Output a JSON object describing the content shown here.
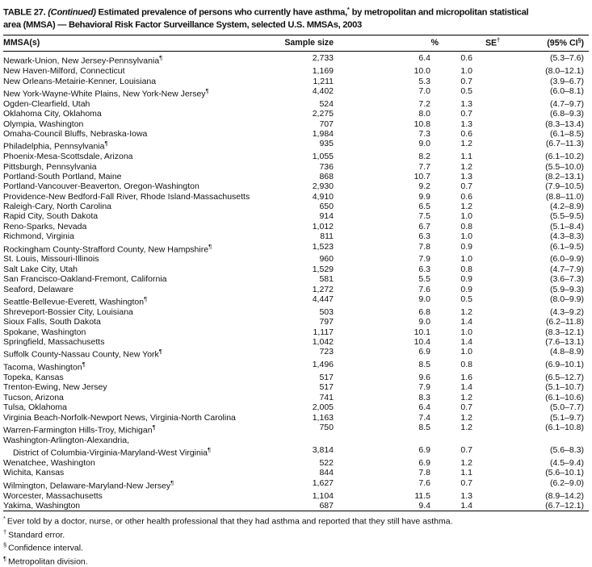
{
  "title": {
    "part1": "TABLE 27. ",
    "continued": "(Continued)",
    "part2": " Estimated prevalence of persons who currently have asthma,",
    "star": "*",
    "part3": " by metropolitan and micropolitan statistical",
    "line2": "area (MMSA) — Behavioral Risk Factor Surveillance System, selected U.S. MMSAs, 2003"
  },
  "table": {
    "headers": [
      {
        "base": "MMSA(s)"
      },
      {
        "base": "Sample size"
      },
      {
        "base": "%"
      },
      {
        "base": "SE",
        "sup": "†"
      },
      {
        "base": "(95% CI",
        "sup": "§",
        "post": ")"
      }
    ],
    "rows": [
      {
        "name": "Newark-Union, New Jersey-Pennsylvania",
        "sup": "¶",
        "size": "2,733",
        "pct": "6.4",
        "se": "0.6",
        "ci": "(5.3–7.6)"
      },
      {
        "name": "New Haven-Milford, Connecticut",
        "size": "1,169",
        "pct": "10.0",
        "se": "1.0",
        "ci": "(8.0–12.1)"
      },
      {
        "name": "New Orleans-Metairie-Kenner, Louisiana",
        "size": "1,211",
        "pct": "5.3",
        "se": "0.7",
        "ci": "(3.9–6.7)"
      },
      {
        "name": "New York-Wayne-White Plains, New York-New Jersey",
        "sup": "¶",
        "size": "4,402",
        "pct": "7.0",
        "se": "0.5",
        "ci": "(6.0–8.1)"
      },
      {
        "name": "Ogden-Clearfield, Utah",
        "size": "524",
        "pct": "7.2",
        "se": "1.3",
        "ci": "(4.7–9.7)"
      },
      {
        "name": "Oklahoma City, Oklahoma",
        "size": "2,275",
        "pct": "8.0",
        "se": "0.7",
        "ci": "(6.8–9.3)"
      },
      {
        "name": "Olympia, Washington",
        "size": "707",
        "pct": "10.8",
        "se": "1.3",
        "ci": "(8.3–13.4)"
      },
      {
        "name": "Omaha-Council Bluffs, Nebraska-Iowa",
        "size": "1,984",
        "pct": "7.3",
        "se": "0.6",
        "ci": "(6.1–8.5)"
      },
      {
        "name": "Philadelphia, Pennsylvania",
        "sup": "¶",
        "size": "935",
        "pct": "9.0",
        "se": "1.2",
        "ci": "(6.7–11.3)"
      },
      {
        "name": "Phoenix-Mesa-Scottsdale, Arizona",
        "size": "1,055",
        "pct": "8.2",
        "se": "1.1",
        "ci": "(6.1–10.2)"
      },
      {
        "name": "Pittsburgh, Pennsylvania",
        "size": "736",
        "pct": "7.7",
        "se": "1.2",
        "ci": "(5.5–10.0)"
      },
      {
        "name": "Portland-South Portland, Maine",
        "size": "868",
        "pct": "10.7",
        "se": "1.3",
        "ci": "(8.2–13.1)"
      },
      {
        "name": "Portland-Vancouver-Beaverton, Oregon-Washington",
        "size": "2,930",
        "pct": "9.2",
        "se": "0.7",
        "ci": "(7.9–10.5)"
      },
      {
        "name": "Providence-New Bedford-Fall River, Rhode Island-Massachusetts",
        "size": "4,910",
        "pct": "9.9",
        "se": "0.6",
        "ci": "(8.8–11.0)"
      },
      {
        "name": "Raleigh-Cary, North Carolina",
        "size": "650",
        "pct": "6.5",
        "se": "1.2",
        "ci": "(4.2–8.9)"
      },
      {
        "name": "Rapid City, South Dakota",
        "size": "914",
        "pct": "7.5",
        "se": "1.0",
        "ci": "(5.5–9.5)"
      },
      {
        "name": "Reno-Sparks, Nevada",
        "size": "1,012",
        "pct": "6.7",
        "se": "0.8",
        "ci": "(5.1–8.4)"
      },
      {
        "name": "Richmond, Virginia",
        "size": "811",
        "pct": "6.3",
        "se": "1.0",
        "ci": "(4.3–8.3)"
      },
      {
        "name": "Rockingham County-Strafford County, New Hampshire",
        "sup": "¶",
        "size": "1,523",
        "pct": "7.8",
        "se": "0.9",
        "ci": "(6.1–9.5)"
      },
      {
        "name": "St. Louis, Missouri-Illinois",
        "size": "960",
        "pct": "7.9",
        "se": "1.0",
        "ci": "(6.0–9.9)"
      },
      {
        "name": "Salt Lake City, Utah",
        "size": "1,529",
        "pct": "6.3",
        "se": "0.8",
        "ci": "(4.7–7.9)"
      },
      {
        "name": "San Francisco-Oakland-Fremont, California",
        "size": "581",
        "pct": "5.5",
        "se": "0.9",
        "ci": "(3.6–7.3)"
      },
      {
        "name": "Seaford, Delaware",
        "size": "1,272",
        "pct": "7.6",
        "se": "0.9",
        "ci": "(5.9–9.3)"
      },
      {
        "name": "Seattle-Bellevue-Everett, Washington",
        "sup": "¶",
        "size": "4,447",
        "pct": "9.0",
        "se": "0.5",
        "ci": "(8.0–9.9)"
      },
      {
        "name": "Shreveport-Bossier City, Louisiana",
        "size": "503",
        "pct": "6.8",
        "se": "1.2",
        "ci": "(4.3–9.2)"
      },
      {
        "name": "Sioux Falls, South Dakota",
        "size": "797",
        "pct": "9.0",
        "se": "1.4",
        "ci": "(6.2–11.8)"
      },
      {
        "name": "Spokane, Washington",
        "size": "1,117",
        "pct": "10.1",
        "se": "1.0",
        "ci": "(8.3–12.1)"
      },
      {
        "name": "Springfield, Massachusetts",
        "size": "1,042",
        "pct": "10.4",
        "se": "1.4",
        "ci": "(7.6–13.1)"
      },
      {
        "name": "Suffolk County-Nassau County, New York",
        "sup": "¶",
        "size": "723",
        "pct": "6.9",
        "se": "1.0",
        "ci": "(4.8–8.9)"
      },
      {
        "name": "Tacoma, Washington",
        "sup": "¶",
        "size": "1,496",
        "pct": "8.5",
        "se": "0.8",
        "ci": "(6.9–10.1)"
      },
      {
        "name": "Topeka, Kansas",
        "size": "517",
        "pct": "9.6",
        "se": "1.6",
        "ci": "(6.5–12.7)"
      },
      {
        "name": "Trenton-Ewing, New Jersey",
        "size": "517",
        "pct": "7.9",
        "se": "1.4",
        "ci": "(5.1–10.7)"
      },
      {
        "name": "Tucson, Arizona",
        "size": "741",
        "pct": "8.3",
        "se": "1.2",
        "ci": "(6.1–10.6)"
      },
      {
        "name": "Tulsa, Oklahoma",
        "size": "2,005",
        "pct": "6.4",
        "se": "0.7",
        "ci": "(5.0–7.7)"
      },
      {
        "name": "Virginia Beach-Norfolk-Newport News, Virginia-North Carolina",
        "size": "1,163",
        "pct": "7.4",
        "se": "1.2",
        "ci": "(5.1–9.7)"
      },
      {
        "name": "Warren-Farmington Hills-Troy, Michigan",
        "sup": "¶",
        "size": "750",
        "pct": "8.5",
        "se": "1.2",
        "ci": "(6.1–10.8)"
      },
      {
        "name": "Washington-Arlington-Alexandria,",
        "name2": "District of Columbia-Virginia-Maryland-West Virginia",
        "sup": "¶",
        "size": "3,814",
        "pct": "6.9",
        "se": "0.7",
        "ci": "(5.6–8.3)"
      },
      {
        "name": "Wenatchee, Washington",
        "size": "522",
        "pct": "6.9",
        "se": "1.2",
        "ci": "(4.5–9.4)"
      },
      {
        "name": "Wichita, Kansas",
        "size": "844",
        "pct": "7.8",
        "se": "1.1",
        "ci": "(5.6–10.1)"
      },
      {
        "name": "Wilmington, Delaware-Maryland-New Jersey",
        "sup": "¶",
        "size": "1,627",
        "pct": "7.6",
        "se": "0.7",
        "ci": "(6.2–9.0)"
      },
      {
        "name": "Worcester, Massachusetts",
        "size": "1,104",
        "pct": "11.5",
        "se": "1.3",
        "ci": "(8.9–14.2)"
      },
      {
        "name": "Yakima, Washington",
        "size": "687",
        "pct": "9.4",
        "se": "1.4",
        "ci": "(6.7–12.1)"
      }
    ]
  },
  "footnotes": [
    {
      "sup": "*",
      "text": "Ever told by a doctor, nurse, or other health professional that they had asthma and reported that they still have asthma."
    },
    {
      "sup": "†",
      "text": "Standard error."
    },
    {
      "sup": "§",
      "text": "Confidence interval."
    },
    {
      "sup": "¶",
      "text": "Metropolitan division."
    }
  ]
}
